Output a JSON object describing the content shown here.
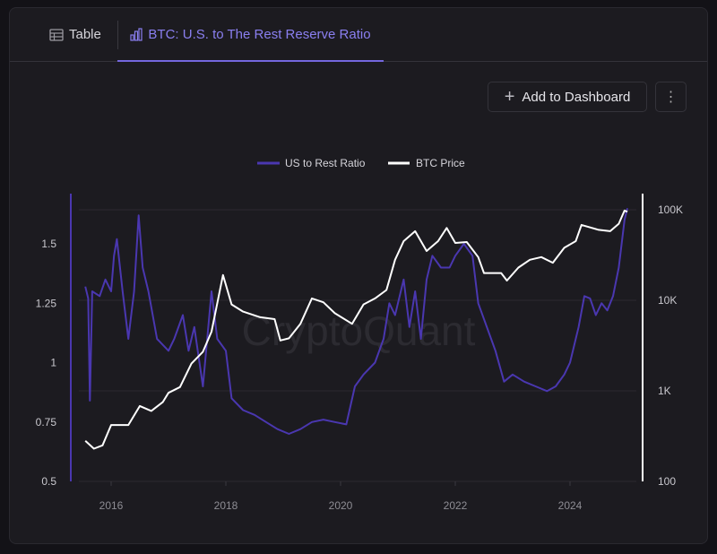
{
  "tabs": [
    {
      "label": "Table",
      "icon": "table-icon"
    },
    {
      "label": "BTC: U.S. to The Rest Reserve Ratio",
      "icon": "bar-chart-icon",
      "active": true
    }
  ],
  "toolbar": {
    "add_label": "Add to Dashboard",
    "more_icon": "more-vertical-icon"
  },
  "chart_data": {
    "type": "line",
    "title": "BTC: U.S. to The Rest Reserve Ratio",
    "watermark": "CryptoQuant",
    "legend": {
      "placement": "top-center"
    },
    "colors": {
      "ratio": "#4a37b0",
      "price": "#ffffff"
    },
    "x_ticks": [
      "2016",
      "2018",
      "2020",
      "2022",
      "2024"
    ],
    "xlim": [
      2015.4,
      2025.15
    ],
    "y_left": {
      "label": "US to Rest Ratio",
      "ticks": [
        "0.5",
        "0.75",
        "1",
        "1.25",
        "1.5"
      ],
      "tick_values": [
        0.5,
        0.75,
        1,
        1.25,
        1.5
      ],
      "ylim": [
        0.5,
        1.75
      ]
    },
    "y_right": {
      "label": "BTC Price",
      "scale": "log",
      "ticks": [
        "100",
        "1K",
        "10K",
        "100K"
      ],
      "tick_values": [
        100,
        1000,
        10000,
        100000
      ],
      "ylim": [
        100,
        150000
      ]
    },
    "series": [
      {
        "name": "US to Rest Ratio",
        "axis": "left",
        "points": [
          [
            2015.55,
            1.32
          ],
          [
            2015.6,
            1.27
          ],
          [
            2015.63,
            0.84
          ],
          [
            2015.67,
            1.3
          ],
          [
            2015.8,
            1.28
          ],
          [
            2015.9,
            1.35
          ],
          [
            2016.0,
            1.3
          ],
          [
            2016.05,
            1.45
          ],
          [
            2016.1,
            1.52
          ],
          [
            2016.2,
            1.3
          ],
          [
            2016.3,
            1.1
          ],
          [
            2016.4,
            1.3
          ],
          [
            2016.48,
            1.62
          ],
          [
            2016.55,
            1.4
          ],
          [
            2016.65,
            1.3
          ],
          [
            2016.8,
            1.1
          ],
          [
            2017.0,
            1.05
          ],
          [
            2017.1,
            1.1
          ],
          [
            2017.25,
            1.2
          ],
          [
            2017.35,
            1.05
          ],
          [
            2017.45,
            1.15
          ],
          [
            2017.6,
            0.9
          ],
          [
            2017.75,
            1.3
          ],
          [
            2017.85,
            1.1
          ],
          [
            2018.0,
            1.05
          ],
          [
            2018.1,
            0.85
          ],
          [
            2018.3,
            0.8
          ],
          [
            2018.5,
            0.78
          ],
          [
            2018.7,
            0.75
          ],
          [
            2018.9,
            0.72
          ],
          [
            2019.1,
            0.7
          ],
          [
            2019.3,
            0.72
          ],
          [
            2019.5,
            0.75
          ],
          [
            2019.7,
            0.76
          ],
          [
            2019.9,
            0.75
          ],
          [
            2020.1,
            0.74
          ],
          [
            2020.25,
            0.9
          ],
          [
            2020.4,
            0.95
          ],
          [
            2020.6,
            1.0
          ],
          [
            2020.75,
            1.1
          ],
          [
            2020.85,
            1.25
          ],
          [
            2020.95,
            1.2
          ],
          [
            2021.1,
            1.35
          ],
          [
            2021.2,
            1.15
          ],
          [
            2021.3,
            1.3
          ],
          [
            2021.4,
            1.1
          ],
          [
            2021.5,
            1.35
          ],
          [
            2021.6,
            1.45
          ],
          [
            2021.75,
            1.4
          ],
          [
            2021.9,
            1.4
          ],
          [
            2022.0,
            1.45
          ],
          [
            2022.15,
            1.5
          ],
          [
            2022.3,
            1.45
          ],
          [
            2022.4,
            1.25
          ],
          [
            2022.55,
            1.15
          ],
          [
            2022.7,
            1.05
          ],
          [
            2022.85,
            0.92
          ],
          [
            2023.0,
            0.95
          ],
          [
            2023.2,
            0.92
          ],
          [
            2023.4,
            0.9
          ],
          [
            2023.6,
            0.88
          ],
          [
            2023.75,
            0.9
          ],
          [
            2023.9,
            0.95
          ],
          [
            2024.0,
            1.0
          ],
          [
            2024.15,
            1.15
          ],
          [
            2024.25,
            1.28
          ],
          [
            2024.35,
            1.27
          ],
          [
            2024.45,
            1.2
          ],
          [
            2024.55,
            1.25
          ],
          [
            2024.65,
            1.22
          ],
          [
            2024.75,
            1.28
          ],
          [
            2024.85,
            1.4
          ],
          [
            2024.95,
            1.6
          ],
          [
            2025.0,
            1.65
          ]
        ]
      },
      {
        "name": "BTC Price",
        "axis": "right",
        "points": [
          [
            2015.55,
            280
          ],
          [
            2015.7,
            230
          ],
          [
            2015.85,
            250
          ],
          [
            2016.0,
            420
          ],
          [
            2016.3,
            420
          ],
          [
            2016.5,
            680
          ],
          [
            2016.7,
            600
          ],
          [
            2016.9,
            750
          ],
          [
            2017.0,
            950
          ],
          [
            2017.2,
            1100
          ],
          [
            2017.4,
            2000
          ],
          [
            2017.6,
            2700
          ],
          [
            2017.75,
            4500
          ],
          [
            2017.95,
            19000
          ],
          [
            2018.1,
            9000
          ],
          [
            2018.3,
            7500
          ],
          [
            2018.6,
            6500
          ],
          [
            2018.85,
            6200
          ],
          [
            2018.95,
            3600
          ],
          [
            2019.1,
            3800
          ],
          [
            2019.3,
            5500
          ],
          [
            2019.5,
            10500
          ],
          [
            2019.7,
            9500
          ],
          [
            2019.9,
            7200
          ],
          [
            2020.2,
            5500
          ],
          [
            2020.4,
            9000
          ],
          [
            2020.6,
            10500
          ],
          [
            2020.8,
            13000
          ],
          [
            2020.95,
            28000
          ],
          [
            2021.1,
            45000
          ],
          [
            2021.3,
            58000
          ],
          [
            2021.5,
            35000
          ],
          [
            2021.7,
            45000
          ],
          [
            2021.85,
            63000
          ],
          [
            2022.0,
            43000
          ],
          [
            2022.2,
            44000
          ],
          [
            2022.4,
            30000
          ],
          [
            2022.5,
            20000
          ],
          [
            2022.8,
            20000
          ],
          [
            2022.9,
            16500
          ],
          [
            2023.1,
            23000
          ],
          [
            2023.3,
            28000
          ],
          [
            2023.5,
            30000
          ],
          [
            2023.7,
            26000
          ],
          [
            2023.9,
            38000
          ],
          [
            2024.1,
            45000
          ],
          [
            2024.2,
            68000
          ],
          [
            2024.5,
            60000
          ],
          [
            2024.7,
            58000
          ],
          [
            2024.85,
            70000
          ],
          [
            2024.95,
            98000
          ],
          [
            2025.0,
            95000
          ]
        ]
      }
    ]
  }
}
